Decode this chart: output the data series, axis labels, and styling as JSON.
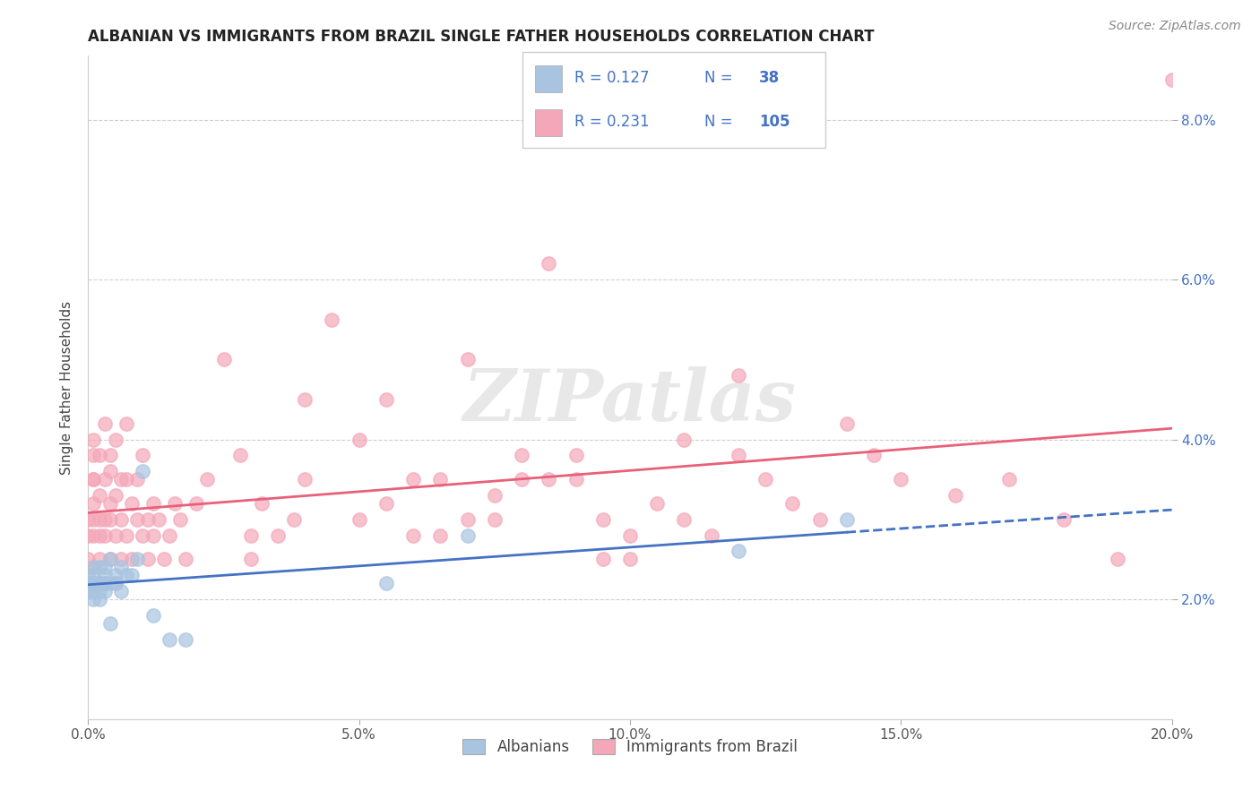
{
  "title": "ALBANIAN VS IMMIGRANTS FROM BRAZIL SINGLE FATHER HOUSEHOLDS CORRELATION CHART",
  "source": "Source: ZipAtlas.com",
  "xlabel_ticks": [
    "0.0%",
    "5.0%",
    "10.0%",
    "15.0%",
    "20.0%"
  ],
  "ylabel_ticks": [
    "2.0%",
    "4.0%",
    "6.0%",
    "8.0%"
  ],
  "ylabel_label": "Single Father Households",
  "xmin": 0.0,
  "xmax": 0.2,
  "ymin": 0.005,
  "ymax": 0.088,
  "watermark_text": "ZIPatlas",
  "albanian_color": "#a8c4e0",
  "brazil_color": "#f4a7b9",
  "albanian_line_color": "#4472c4",
  "brazil_line_color": "#e8607a",
  "legend_text_color": "#4472c4",
  "albanian_R": "0.127",
  "albanian_N": "38",
  "brazil_R": "0.231",
  "brazil_N": "105",
  "legend_labels": [
    "Albanians",
    "Immigrants from Brazil"
  ],
  "albanian_scatter_x": [
    0.0,
    0.0,
    0.0,
    0.0,
    0.001,
    0.001,
    0.001,
    0.001,
    0.001,
    0.001,
    0.001,
    0.002,
    0.002,
    0.002,
    0.002,
    0.002,
    0.003,
    0.003,
    0.003,
    0.003,
    0.004,
    0.004,
    0.004,
    0.005,
    0.005,
    0.006,
    0.006,
    0.007,
    0.008,
    0.009,
    0.01,
    0.012,
    0.015,
    0.018,
    0.055,
    0.07,
    0.12,
    0.14
  ],
  "albanian_scatter_y": [
    0.022,
    0.021,
    0.023,
    0.021,
    0.022,
    0.02,
    0.023,
    0.021,
    0.022,
    0.024,
    0.021,
    0.022,
    0.024,
    0.02,
    0.022,
    0.021,
    0.022,
    0.023,
    0.021,
    0.024,
    0.025,
    0.022,
    0.017,
    0.023,
    0.022,
    0.024,
    0.021,
    0.023,
    0.023,
    0.025,
    0.036,
    0.018,
    0.015,
    0.015,
    0.022,
    0.028,
    0.026,
    0.03
  ],
  "brazil_scatter_x": [
    0.0,
    0.0,
    0.0,
    0.001,
    0.001,
    0.001,
    0.001,
    0.001,
    0.001,
    0.001,
    0.001,
    0.001,
    0.002,
    0.002,
    0.002,
    0.002,
    0.002,
    0.002,
    0.003,
    0.003,
    0.003,
    0.003,
    0.003,
    0.004,
    0.004,
    0.004,
    0.004,
    0.004,
    0.005,
    0.005,
    0.005,
    0.005,
    0.006,
    0.006,
    0.006,
    0.007,
    0.007,
    0.007,
    0.008,
    0.008,
    0.009,
    0.009,
    0.01,
    0.01,
    0.011,
    0.011,
    0.012,
    0.012,
    0.013,
    0.014,
    0.015,
    0.016,
    0.017,
    0.018,
    0.02,
    0.022,
    0.025,
    0.028,
    0.03,
    0.032,
    0.035,
    0.038,
    0.04,
    0.045,
    0.05,
    0.055,
    0.06,
    0.065,
    0.07,
    0.075,
    0.08,
    0.085,
    0.09,
    0.095,
    0.1,
    0.11,
    0.12,
    0.13,
    0.14,
    0.15,
    0.16,
    0.17,
    0.18,
    0.19,
    0.2,
    0.03,
    0.04,
    0.06,
    0.07,
    0.08,
    0.09,
    0.1,
    0.11,
    0.12,
    0.05,
    0.055,
    0.065,
    0.075,
    0.085,
    0.095,
    0.105,
    0.115,
    0.125,
    0.135,
    0.145
  ],
  "brazil_scatter_y": [
    0.025,
    0.028,
    0.03,
    0.035,
    0.04,
    0.022,
    0.03,
    0.028,
    0.032,
    0.035,
    0.038,
    0.024,
    0.025,
    0.03,
    0.033,
    0.038,
    0.028,
    0.022,
    0.028,
    0.022,
    0.035,
    0.03,
    0.042,
    0.025,
    0.032,
    0.03,
    0.036,
    0.038,
    0.028,
    0.022,
    0.033,
    0.04,
    0.03,
    0.025,
    0.035,
    0.035,
    0.042,
    0.028,
    0.025,
    0.032,
    0.03,
    0.035,
    0.028,
    0.038,
    0.025,
    0.03,
    0.028,
    0.032,
    0.03,
    0.025,
    0.028,
    0.032,
    0.03,
    0.025,
    0.032,
    0.035,
    0.05,
    0.038,
    0.025,
    0.032,
    0.028,
    0.03,
    0.035,
    0.055,
    0.04,
    0.045,
    0.035,
    0.035,
    0.05,
    0.03,
    0.035,
    0.062,
    0.038,
    0.025,
    0.028,
    0.03,
    0.038,
    0.032,
    0.042,
    0.035,
    0.033,
    0.035,
    0.03,
    0.025,
    0.085,
    0.028,
    0.045,
    0.028,
    0.03,
    0.038,
    0.035,
    0.025,
    0.04,
    0.048,
    0.03,
    0.032,
    0.028,
    0.033,
    0.035,
    0.03,
    0.032,
    0.028,
    0.035,
    0.03,
    0.038
  ]
}
